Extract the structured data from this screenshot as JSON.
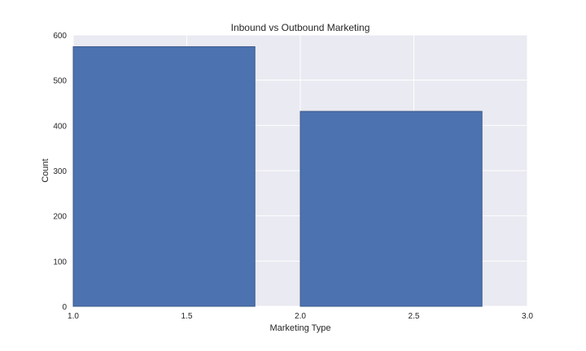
{
  "chart_data": {
    "type": "bar",
    "title": "Inbound vs Outbound Marketing",
    "xlabel": "Marketing Type",
    "ylabel": "Count",
    "xlim": [
      1.0,
      3.0
    ],
    "ylim": [
      0,
      600
    ],
    "x_ticks": [
      "1.0",
      "1.5",
      "2.0",
      "2.5",
      "3.0"
    ],
    "y_ticks": [
      "0",
      "100",
      "200",
      "300",
      "400",
      "500",
      "600"
    ],
    "bars": [
      {
        "x_start": 1.0,
        "x_end": 1.8,
        "value": 574
      },
      {
        "x_start": 2.0,
        "x_end": 2.8,
        "value": 431
      }
    ],
    "grid": true,
    "bar_color": "#4c72b0",
    "bar_edge_color": "#3b5a8a",
    "plot_background": "#eaeaf2"
  }
}
